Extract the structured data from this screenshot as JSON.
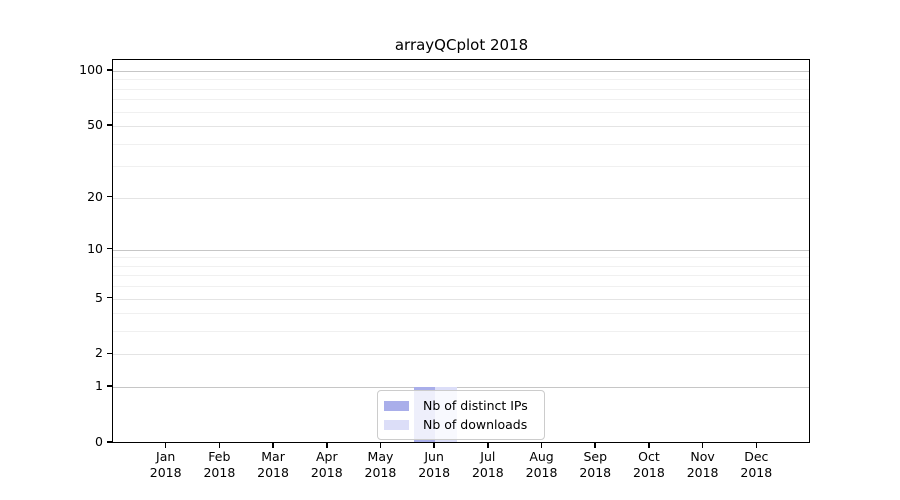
{
  "chart_data": {
    "type": "bar",
    "title": "arrayQCplot 2018",
    "x_axis": {
      "months": [
        "Jan",
        "Feb",
        "Mar",
        "Apr",
        "May",
        "Jun",
        "Jul",
        "Aug",
        "Sep",
        "Oct",
        "Nov",
        "Dec"
      ],
      "year": "2018"
    },
    "categories": [
      "Jan 2018",
      "Feb 2018",
      "Mar 2018",
      "Apr 2018",
      "May 2018",
      "Jun 2018",
      "Jul 2018",
      "Aug 2018",
      "Sep 2018",
      "Oct 2018",
      "Nov 2018",
      "Dec 2018"
    ],
    "series": [
      {
        "name": "Nb of distinct IPs",
        "color": "#a9aeea",
        "values": [
          0,
          0,
          0,
          0,
          0,
          1,
          0,
          0,
          0,
          0,
          0,
          0
        ]
      },
      {
        "name": "Nb of downloads",
        "color": "#dcdef8",
        "values": [
          0,
          0,
          0,
          0,
          0,
          1,
          0,
          0,
          0,
          0,
          0,
          0
        ]
      }
    ],
    "y_axis": {
      "scale": "log1p",
      "ticks": [
        0,
        1,
        2,
        5,
        10,
        20,
        50,
        100
      ],
      "ylim": [
        0,
        115
      ]
    },
    "gridlines": {
      "major": [
        1,
        10,
        100
      ],
      "labeled_minor": [
        2,
        5,
        20,
        50
      ],
      "minor": [
        3,
        4,
        6,
        7,
        8,
        9,
        30,
        40,
        60,
        70,
        80,
        90
      ]
    },
    "colors": {
      "major_grid": "#c6c6c6",
      "labeled_minor_grid": "#e4e4e4",
      "minor_grid": "#f0f0f0",
      "axis": "#000000",
      "text": "#000000",
      "legend_border": "#cccccc"
    },
    "legend": {
      "position": "lower center"
    }
  }
}
